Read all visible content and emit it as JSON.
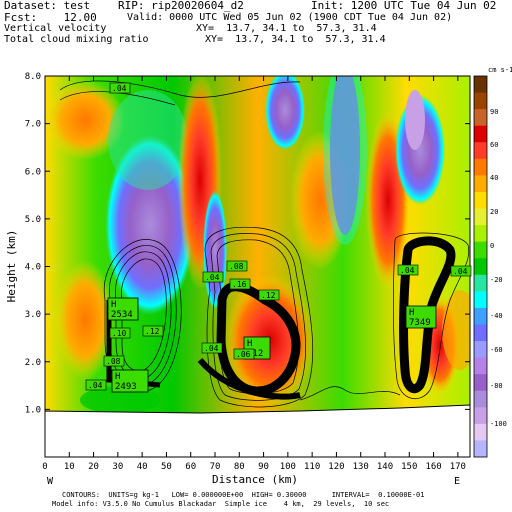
{
  "header": {
    "dataset": "Dataset: test",
    "rip": "RIP: rip20020604_d2",
    "init": "Init: 1200 UTC Tue 04 Jun 02",
    "fcst": "Fcst:    12.00",
    "valid": "Valid: 0000 UTC Wed 05 Jun 02 (1900 CDT Tue 04 Jun 02)",
    "field1": "Vertical velocity",
    "xy1": "XY=  13.7, 34.1 to  57.3, 31.4",
    "field2": "Total cloud mixing ratio",
    "xy2": "XY=  13.7, 34.1 to  57.3, 31.4"
  },
  "footer": {
    "line1": "CONTOURS:  UNITS=g kg-1   LOW= 0.000000E+00  HIGH= 0.30000      INTERVAL=  0.10000E-01",
    "line2": "Model info: V3.5.0 No Cumulus Blackadar  Simple ice    4 km,  29 levels,  10 sec"
  },
  "chart_data": {
    "type": "heatmap",
    "xlabel": "Distance (km)",
    "ylabel": "Height (km)",
    "x_ticks": [
      0,
      10,
      20,
      30,
      40,
      50,
      60,
      70,
      80,
      90,
      100,
      110,
      120,
      130,
      140,
      150,
      160,
      170
    ],
    "y_ticks": [
      1.0,
      2.0,
      3.0,
      4.0,
      5.0,
      6.0,
      7.0,
      8.0
    ],
    "xlim": [
      0,
      175
    ],
    "ylim": [
      0,
      8
    ],
    "left_end_label": "W",
    "right_end_label": "E",
    "colorbar": {
      "unit": "cm s-1",
      "labels": [
        90,
        60,
        40,
        20,
        0,
        -20,
        -40,
        -60,
        -80,
        -100
      ],
      "colors": [
        "#663300",
        "#994400",
        "#c86428",
        "#dc0000",
        "#ff3c28",
        "#ff7800",
        "#ffaa00",
        "#ffdc00",
        "#e6f032",
        "#aaf000",
        "#3cdc00",
        "#00c800",
        "#28e6a0",
        "#00ffff",
        "#40a0ff",
        "#6f6fff",
        "#9b9bff",
        "#b482e6",
        "#9660c8",
        "#aa8cdc",
        "#c8a0e6",
        "#e6c8f0",
        "#b4b4ff"
      ]
    },
    "cloud_maxima": [
      {
        "letter": "H",
        "value": "2534"
      },
      {
        "letter": "H",
        "value": "2493"
      },
      {
        "letter": "H",
        "value": "912"
      },
      {
        "letter": "H",
        "value": "7349"
      }
    ],
    "contour_labels": [
      ".04",
      ".12",
      ".10",
      ".08",
      ".04",
      ".04",
      ".08",
      ".16",
      ".04",
      ".12",
      ".04",
      ".04",
      ".06"
    ]
  }
}
